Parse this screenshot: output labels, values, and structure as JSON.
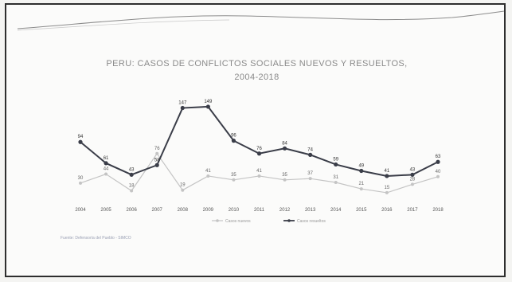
{
  "chart_data": {
    "type": "line",
    "title": "PERU: CASOS DE CONFLICTOS SOCIALES NUEVOS Y RESUELTOS,",
    "subtitle": "2004-2018",
    "categories": [
      "2004",
      "2005",
      "2006",
      "2007",
      "2008",
      "2009",
      "2010",
      "2011",
      "2012",
      "2013",
      "2014",
      "2015",
      "2016",
      "2017",
      "2018"
    ],
    "series": [
      {
        "name": "Casos resueltos",
        "color": "#3a3d48",
        "values": [
          94,
          61,
          43,
          58,
          147,
          149,
          96,
          76,
          84,
          74,
          59,
          49,
          41,
          43,
          63
        ]
      },
      {
        "name": "Casos nuevos",
        "color": "#c4c4c4",
        "values": [
          30,
          44,
          18,
          76,
          19,
          41,
          35,
          41,
          35,
          37,
          31,
          21,
          15,
          28,
          40
        ]
      }
    ],
    "ylim": [
      0,
      170
    ],
    "grid": false,
    "legend_position": "bottom"
  },
  "source": "Fuente: Defensoría del Pueblo - SIMCO"
}
